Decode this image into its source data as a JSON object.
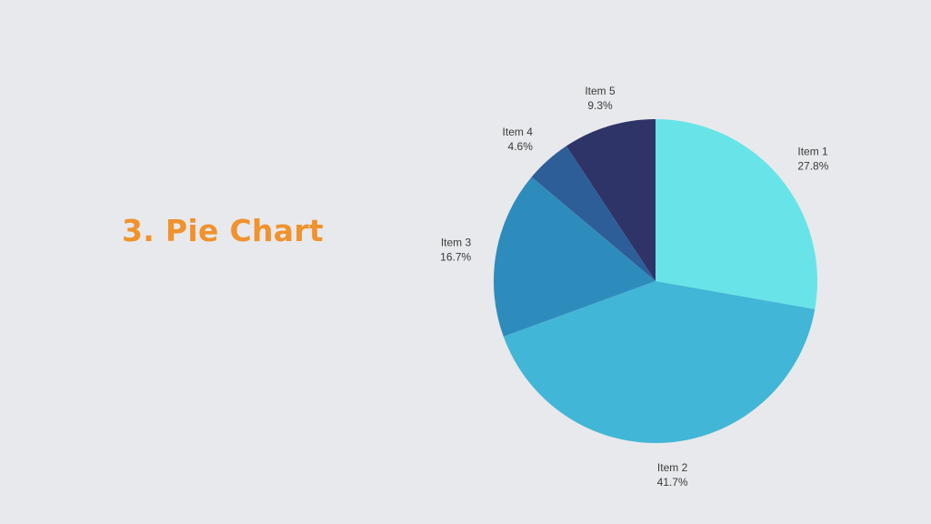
{
  "slide": {
    "title": "3. Pie Chart"
  },
  "chart_data": {
    "type": "pie",
    "title": "",
    "categories": [
      "Item 1",
      "Item 2",
      "Item 3",
      "Item 4",
      "Item 5"
    ],
    "values": [
      27.8,
      41.7,
      16.7,
      4.6,
      9.3
    ],
    "value_labels": [
      "27.8%",
      "41.7%",
      "16.7%",
      "4.6%",
      "9.3%"
    ],
    "colors": [
      "#68e4e8",
      "#42b6d6",
      "#2e8cbd",
      "#2e5e98",
      "#2e3368"
    ],
    "start": "top, clockwise",
    "legend": "none"
  },
  "colors": {
    "background": "#e8e9ec",
    "title": "#f0922d",
    "label_text": "#3a3a3a"
  }
}
